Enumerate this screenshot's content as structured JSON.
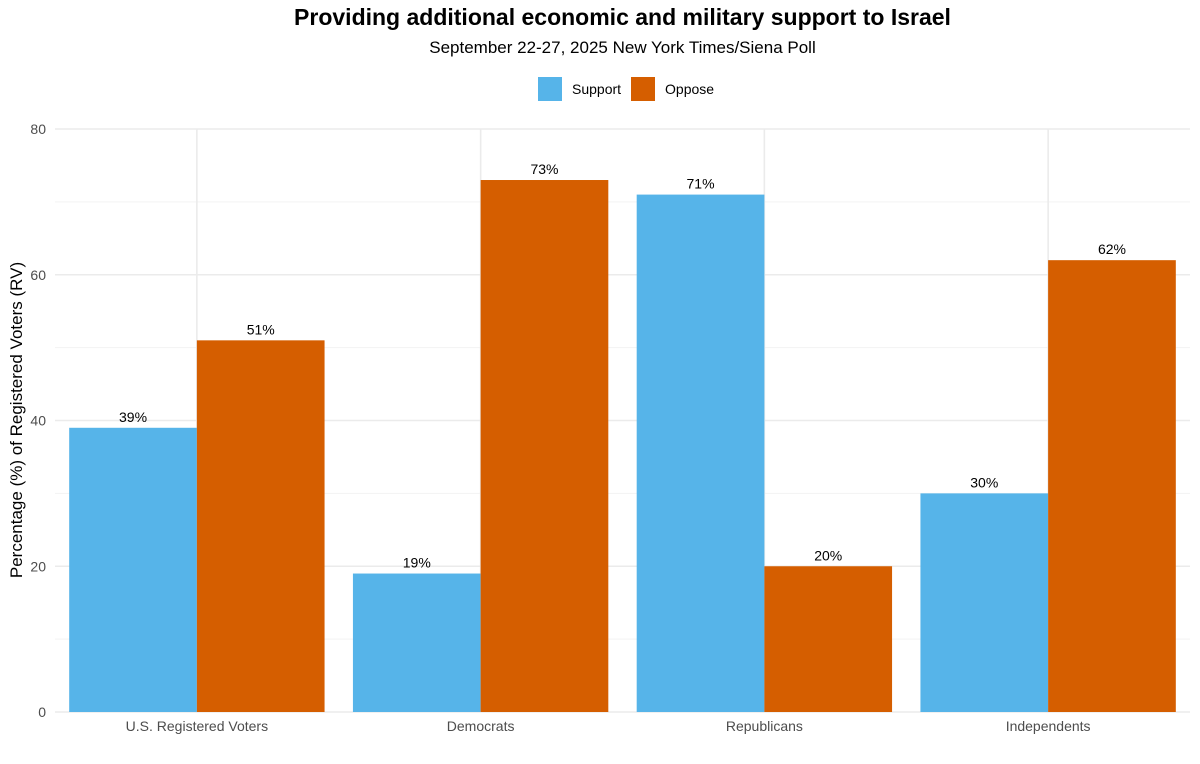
{
  "title": "Providing additional economic and military support to Israel",
  "subtitle": "September 22-27, 2025 New York Times/Siena Poll",
  "colors": {
    "support": "#56B4E9",
    "oppose": "#D55E00",
    "grid": "#ebebeb",
    "axis_text": "#4d4d4d"
  },
  "chart_data": {
    "type": "bar",
    "title": "Providing additional economic and military support to Israel",
    "subtitle": "September 22-27, 2025 New York Times/Siena Poll",
    "categories": [
      "U.S. Registered Voters",
      "Democrats",
      "Republicans",
      "Independents"
    ],
    "series": [
      {
        "name": "Support",
        "values": [
          39,
          19,
          71,
          30
        ],
        "labels": [
          "39%",
          "19%",
          "71%",
          "30%"
        ]
      },
      {
        "name": "Oppose",
        "values": [
          51,
          73,
          20,
          62
        ],
        "labels": [
          "51%",
          "73%",
          "20%",
          "62%"
        ]
      }
    ],
    "xlabel": "",
    "ylabel": "Percentage (%) of Registered Voters (RV)",
    "ylim": [
      0,
      80
    ],
    "yticks": [
      "0",
      "20",
      "40",
      "60",
      "80"
    ],
    "legend": "top-center",
    "grid": true
  }
}
